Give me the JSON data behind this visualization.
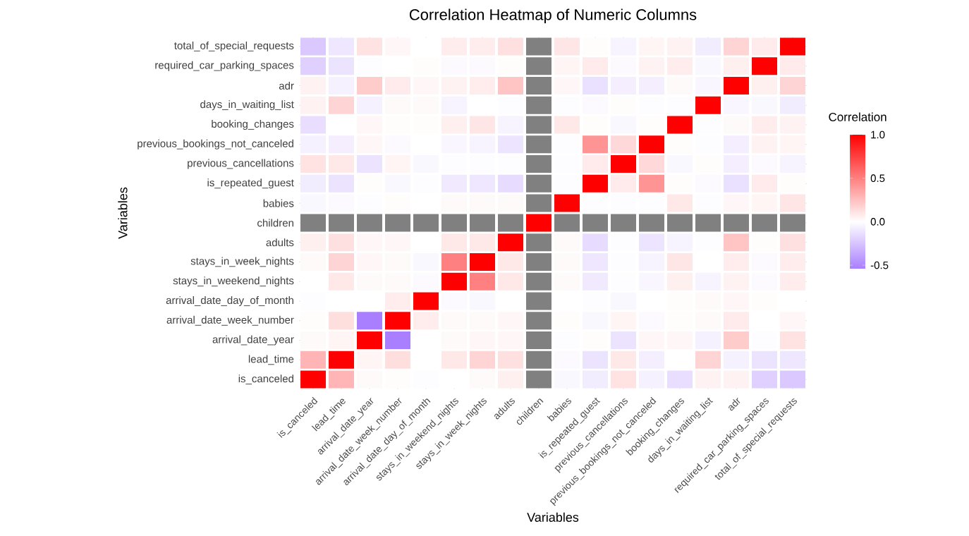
{
  "chart_data": {
    "type": "heatmap",
    "title": "Correlation Heatmap of Numeric Columns",
    "xlabel": "Variables",
    "ylabel": "Variables",
    "clabel": "Correlation",
    "categories": [
      "is_canceled",
      "lead_time",
      "arrival_date_year",
      "arrival_date_week_number",
      "arrival_date_day_of_month",
      "stays_in_weekend_nights",
      "stays_in_week_nights",
      "adults",
      "children",
      "babies",
      "is_repeated_guest",
      "previous_cancellations",
      "previous_bookings_not_canceled",
      "booking_changes",
      "days_in_waiting_list",
      "adr",
      "required_car_parking_spaces",
      "total_of_special_requests"
    ],
    "y_categories": [
      "total_of_special_requests",
      "required_car_parking_spaces",
      "adr",
      "days_in_waiting_list",
      "booking_changes",
      "previous_bookings_not_canceled",
      "previous_cancellations",
      "is_repeated_guest",
      "babies",
      "children",
      "adults",
      "stays_in_week_nights",
      "stays_in_weekend_nights",
      "arrival_date_day_of_month",
      "arrival_date_week_number",
      "arrival_date_year",
      "lead_time",
      "is_canceled"
    ],
    "cells": [
      [
        -0.23,
        -0.1,
        0.11,
        0.03,
        0,
        0.07,
        0.07,
        0.12,
        null,
        0.1,
        0.01,
        -0.05,
        0.04,
        0.05,
        -0.08,
        0.17,
        0.08,
        1
      ],
      [
        -0.2,
        -0.12,
        -0.01,
        0,
        0.01,
        -0.02,
        -0.02,
        0.01,
        null,
        0.04,
        0.08,
        -0.02,
        0.05,
        0.07,
        -0.03,
        0.06,
        1,
        0.08
      ],
      [
        0.05,
        -0.06,
        0.2,
        0.08,
        0.03,
        0.05,
        0.07,
        0.23,
        null,
        0.03,
        -0.13,
        -0.07,
        -0.07,
        0.02,
        -0.04,
        1,
        0.06,
        0.17
      ],
      [
        0.05,
        0.17,
        -0.06,
        0.02,
        0.02,
        -0.05,
        0,
        -0.01,
        null,
        -0.01,
        -0.02,
        0.01,
        -0.01,
        -0.01,
        1,
        -0.04,
        -0.03,
        -0.08
      ],
      [
        -0.14,
        0,
        0.03,
        0.01,
        0.01,
        0.06,
        0.1,
        -0.05,
        null,
        0.09,
        0.01,
        -0.03,
        0.01,
        1,
        -0.01,
        0.02,
        0.07,
        0.05
      ],
      [
        -0.06,
        -0.07,
        0.03,
        -0.02,
        0,
        -0.04,
        -0.05,
        -0.11,
        null,
        -0.01,
        0.42,
        0.15,
        1,
        0.01,
        -0.01,
        -0.07,
        0.05,
        0.04
      ],
      [
        0.11,
        0.09,
        -0.12,
        0.04,
        -0.03,
        -0.01,
        -0.01,
        -0.01,
        null,
        -0.01,
        0.08,
        1,
        0.15,
        -0.03,
        0.01,
        -0.07,
        -0.02,
        -0.05
      ],
      [
        -0.08,
        -0.12,
        0.01,
        -0.03,
        -0.01,
        -0.09,
        -0.1,
        -0.15,
        null,
        -0.01,
        1,
        0.08,
        0.42,
        0.01,
        -0.02,
        -0.13,
        0.08,
        0.01
      ],
      [
        -0.03,
        -0.02,
        -0.01,
        0.01,
        0,
        0.02,
        0.02,
        0.02,
        null,
        1,
        -0.01,
        -0.01,
        -0.01,
        0.09,
        -0.01,
        0.03,
        0.04,
        0.1
      ],
      [
        null,
        null,
        null,
        null,
        null,
        null,
        null,
        null,
        1,
        null,
        null,
        null,
        null,
        null,
        null,
        null,
        null,
        null
      ],
      [
        0.06,
        0.12,
        0.03,
        0.03,
        0,
        0.09,
        0.09,
        1,
        null,
        0.02,
        -0.15,
        -0.01,
        -0.11,
        -0.05,
        -0.01,
        0.23,
        0.01,
        0.12
      ],
      [
        0.02,
        0.17,
        0.03,
        0.02,
        -0.03,
        0.5,
        1,
        0.09,
        null,
        0.02,
        -0.1,
        -0.01,
        -0.05,
        0.1,
        0,
        0.07,
        -0.02,
        0.07
      ],
      [
        0,
        0.09,
        0.02,
        0.02,
        -0.02,
        1,
        0.5,
        0.09,
        null,
        0.02,
        -0.09,
        -0.01,
        -0.04,
        0.06,
        -0.05,
        0.05,
        -0.02,
        0.07
      ],
      [
        -0.01,
        0,
        0,
        0.07,
        1,
        -0.02,
        -0.03,
        0,
        null,
        0,
        -0.01,
        -0.03,
        0,
        0.01,
        0.02,
        0.03,
        0.01,
        0
      ],
      [
        0.01,
        0.13,
        -0.54,
        1,
        0.07,
        0.02,
        0.02,
        0.03,
        null,
        0.01,
        -0.03,
        0.04,
        -0.02,
        0.01,
        0.02,
        0.08,
        0,
        0.03
      ],
      [
        0.02,
        0.04,
        1,
        -0.54,
        0,
        0.02,
        0.03,
        0.03,
        null,
        -0.01,
        0.01,
        -0.12,
        0.03,
        0.03,
        -0.06,
        0.2,
        -0.01,
        0.11
      ],
      [
        0.29,
        1,
        0.04,
        0.13,
        0,
        0.09,
        0.17,
        0.12,
        null,
        -0.02,
        -0.12,
        0.09,
        -0.07,
        0,
        0.17,
        -0.06,
        -0.12,
        -0.1
      ],
      [
        1,
        0.29,
        0.02,
        0.01,
        -0.01,
        0,
        0.02,
        0.06,
        null,
        -0.03,
        -0.08,
        0.11,
        -0.06,
        -0.14,
        0.05,
        0.05,
        -0.2,
        -0.23
      ]
    ],
    "clim": [
      -0.54,
      1
    ],
    "cticks": [
      {
        "value": -0.5,
        "label": "-0.5"
      },
      {
        "value": 0,
        "label": "0.0"
      },
      {
        "value": 0.5,
        "label": "0.5"
      },
      {
        "value": 1,
        "label": "1.0"
      }
    ]
  }
}
